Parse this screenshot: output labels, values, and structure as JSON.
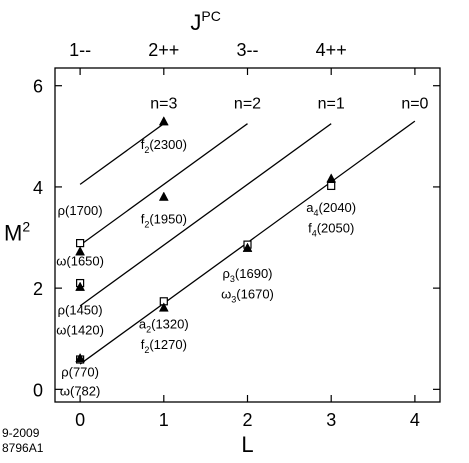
{
  "chart_data": {
    "type": "scatter",
    "title": "",
    "top_axis": {
      "title": "J",
      "title_superscript": "PC",
      "labels": [
        {
          "x": 0,
          "text": "1--"
        },
        {
          "x": 1,
          "text": "2++"
        },
        {
          "x": 2,
          "text": "3--"
        },
        {
          "x": 3,
          "text": "4++"
        }
      ]
    },
    "xlabel": "L",
    "ylabel": "M",
    "ylabel_superscript": "2",
    "xlim": [
      -0.3,
      4.3
    ],
    "ylim": [
      -0.25,
      6.35
    ],
    "xticks": [
      0,
      1,
      2,
      3,
      4
    ],
    "yticks": [
      0,
      2,
      4,
      6
    ],
    "grid": false,
    "trajectories": [
      {
        "label": "n=3",
        "x": [
          0,
          1
        ],
        "y": [
          4.05,
          5.25
        ],
        "label_at": [
          1,
          5.55
        ]
      },
      {
        "label": "n=2",
        "x": [
          0,
          2
        ],
        "y": [
          2.85,
          5.25
        ],
        "label_at": [
          2,
          5.55
        ]
      },
      {
        "label": "n=1",
        "x": [
          0,
          3
        ],
        "y": [
          1.65,
          5.25
        ],
        "label_at": [
          3,
          5.55
        ]
      },
      {
        "label": "n=0",
        "x": [
          0,
          4
        ],
        "y": [
          0.5,
          5.3
        ],
        "label_at": [
          4,
          5.55
        ]
      }
    ],
    "series": [
      {
        "marker": "open-square",
        "points": [
          {
            "x": 0,
            "y": 0.59
          },
          {
            "x": 0,
            "y": 2.1
          },
          {
            "x": 0,
            "y": 2.89
          },
          {
            "x": 1,
            "y": 1.74
          },
          {
            "x": 2,
            "y": 2.86
          },
          {
            "x": 3,
            "y": 4.02
          }
        ]
      },
      {
        "marker": "filled-triangle",
        "points": [
          {
            "x": 0,
            "y": 0.61
          },
          {
            "x": 0,
            "y": 2.02
          },
          {
            "x": 0,
            "y": 2.72
          },
          {
            "x": 1,
            "y": 1.61
          },
          {
            "x": 1,
            "y": 3.8
          },
          {
            "x": 1,
            "y": 5.29
          },
          {
            "x": 2,
            "y": 2.79
          },
          {
            "x": 3,
            "y": 4.16
          }
        ]
      }
    ],
    "annotations": [
      {
        "x": 0,
        "y": 3.45,
        "anchor": "middle",
        "text": "ρ(1700)"
      },
      {
        "x": 0,
        "y": 2.45,
        "anchor": "middle",
        "text": "ω(1650)"
      },
      {
        "x": 0,
        "y": 1.48,
        "anchor": "middle",
        "text": "ρ(1450)"
      },
      {
        "x": 0,
        "y": 1.08,
        "anchor": "middle",
        "text": "ω(1420)"
      },
      {
        "x": 0,
        "y": 0.25,
        "anchor": "middle",
        "text": "ρ(770)"
      },
      {
        "x": 0,
        "y": -0.12,
        "anchor": "middle",
        "text": "ω(782)"
      },
      {
        "x": 1,
        "y": 1.2,
        "anchor": "middle",
        "text": "a",
        "sub": "2",
        "rest": "(1320)"
      },
      {
        "x": 1,
        "y": 0.8,
        "anchor": "middle",
        "text": "f",
        "sub": "2",
        "rest": "(1270)"
      },
      {
        "x": 1,
        "y": 4.75,
        "anchor": "middle",
        "text": "f",
        "sub": "2",
        "rest": "(2300)"
      },
      {
        "x": 1,
        "y": 3.28,
        "anchor": "middle",
        "text": "f",
        "sub": "2",
        "rest": "(1950)"
      },
      {
        "x": 2,
        "y": 2.2,
        "anchor": "middle",
        "text": "ρ",
        "sub": "3",
        "rest": "(1690)"
      },
      {
        "x": 2,
        "y": 1.8,
        "anchor": "middle",
        "text": "ω",
        "sub": "3",
        "rest": "(1670)"
      },
      {
        "x": 3,
        "y": 3.5,
        "anchor": "middle",
        "text": "a",
        "sub": "4",
        "rest": "(2040)"
      },
      {
        "x": 3,
        "y": 3.1,
        "anchor": "middle",
        "text": "f",
        "sub": "4",
        "rest": "(2050)"
      }
    ],
    "figure_id": [
      "9-2009",
      "8796A1"
    ]
  }
}
